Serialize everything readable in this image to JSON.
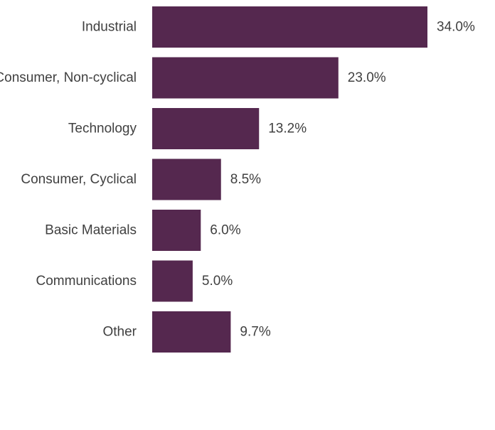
{
  "chart_data": {
    "type": "bar",
    "orientation": "horizontal",
    "categories": [
      "Industrial",
      "Consumer, Non-cyclical",
      "Technology",
      "Consumer, Cyclical",
      "Basic Materials",
      "Communications",
      "Other"
    ],
    "values": [
      34.0,
      23.0,
      13.2,
      8.5,
      6.0,
      5.0,
      9.7
    ],
    "data_labels": [
      "34.0%",
      "23.0%",
      "13.2%",
      "8.5%",
      "6.0%",
      "5.0%",
      "9.7%"
    ],
    "unit": "%",
    "xlim": [
      0,
      34.0
    ],
    "grid": false,
    "legend": "none",
    "colors": {
      "bar": "#55284f",
      "text": "#404040"
    }
  }
}
